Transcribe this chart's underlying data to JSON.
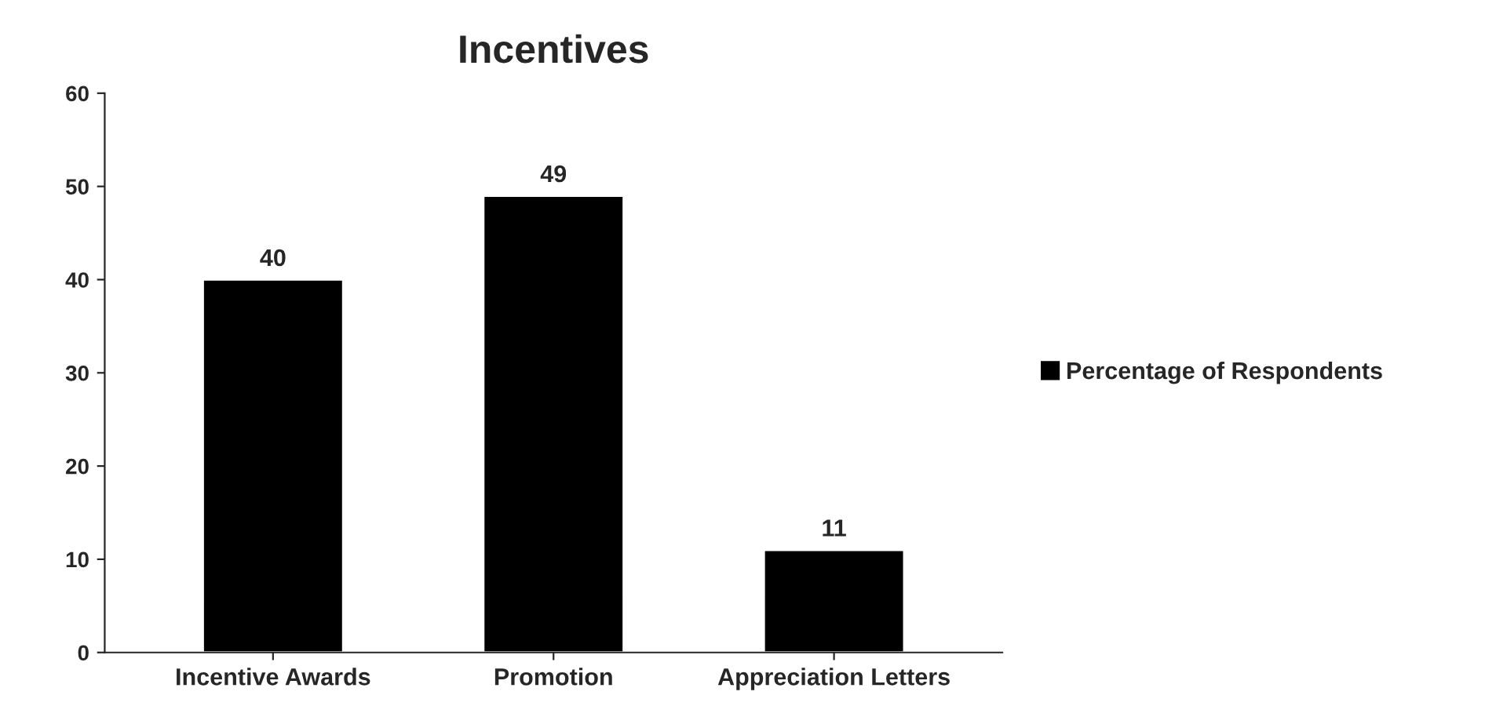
{
  "chart_data": {
    "type": "bar",
    "title": "Incentives",
    "categories": [
      "Incentive Awards",
      "Promotion",
      "Appreciation Letters"
    ],
    "series": [
      {
        "name": "Percentage of Respondents",
        "color": "#000000",
        "values": [
          40,
          49,
          11
        ]
      }
    ],
    "ylim": [
      0,
      60
    ],
    "yticks": [
      0,
      10,
      20,
      30,
      40,
      50,
      60
    ],
    "grid": false,
    "legend": "right",
    "data_labels": true
  }
}
